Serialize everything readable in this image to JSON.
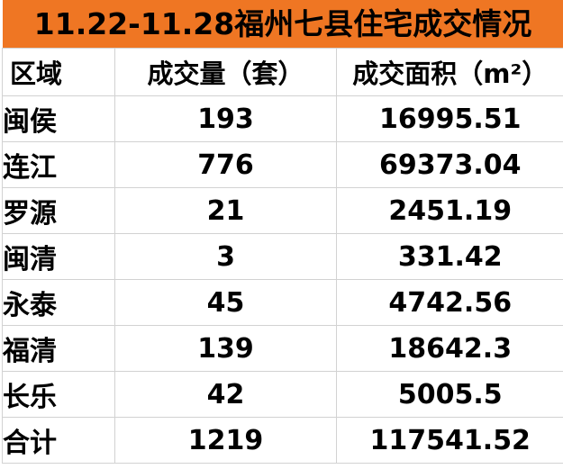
{
  "chart_data": {
    "type": "table",
    "title": "11.22-11.28福州七县住宅成交情况",
    "columns": [
      "区域",
      "成交量（套）",
      "成交面积（m²）"
    ],
    "rows": [
      [
        "闽侯",
        "193",
        "16995.51"
      ],
      [
        "连江",
        "776",
        "69373.04"
      ],
      [
        "罗源",
        "21",
        "2451.19"
      ],
      [
        "闽清",
        "3",
        "331.42"
      ],
      [
        "永泰",
        "45",
        "4742.56"
      ],
      [
        "福清",
        "139",
        "18642.3"
      ],
      [
        "长乐",
        "42",
        "5005.5"
      ],
      [
        "合计",
        "1219",
        "117541.52"
      ]
    ]
  },
  "colors": {
    "title_bg": "#EF7623",
    "grid_line": "#D2D2D2",
    "text": "#000000",
    "cell_bg": "#FFFFFF"
  }
}
